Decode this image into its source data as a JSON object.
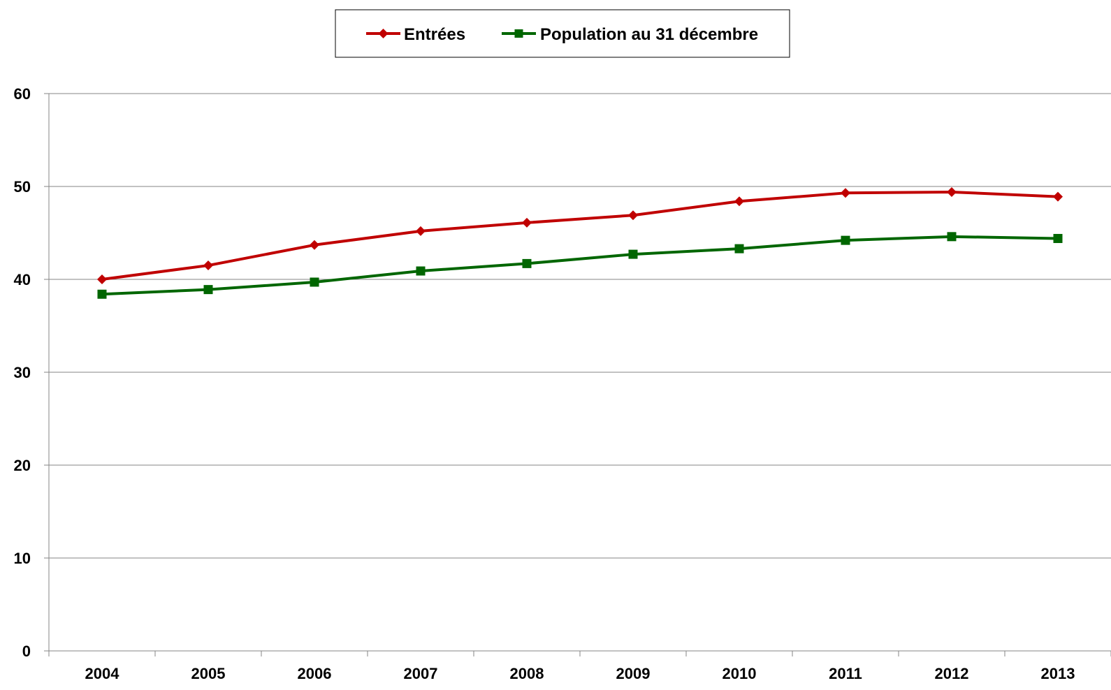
{
  "chart_data": {
    "type": "line",
    "title": "",
    "xlabel": "",
    "ylabel": "",
    "categories": [
      "2004",
      "2005",
      "2006",
      "2007",
      "2008",
      "2009",
      "2010",
      "2011",
      "2012",
      "2013"
    ],
    "y_ticks": [
      "0",
      "10",
      "20",
      "30",
      "40",
      "50",
      "60"
    ],
    "ylim": [
      0,
      60
    ],
    "grid": "horizontal",
    "legend_position": "top-center",
    "series": [
      {
        "name": "Entrées",
        "color": "#C00000",
        "marker": "diamond",
        "values": [
          40.0,
          41.5,
          43.7,
          45.2,
          46.1,
          46.9,
          48.4,
          49.3,
          49.4,
          48.9
        ]
      },
      {
        "name": "Population au 31 décembre",
        "color": "#006600",
        "marker": "square",
        "values": [
          38.4,
          38.9,
          39.7,
          40.9,
          41.7,
          42.7,
          43.3,
          44.2,
          44.6,
          44.4
        ]
      }
    ]
  }
}
